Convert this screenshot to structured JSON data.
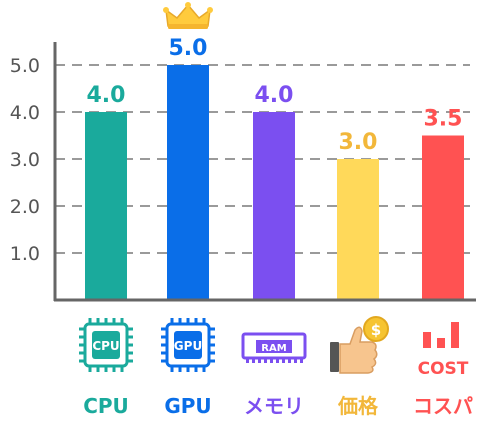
{
  "chart_data": {
    "type": "bar",
    "categories": [
      "CPU",
      "GPU",
      "メモリ",
      "価格",
      "コスパ"
    ],
    "values": [
      4.0,
      5.0,
      4.0,
      3.0,
      3.5
    ],
    "value_labels": [
      "4.0",
      "5.0",
      "4.0",
      "3.0",
      "3.5"
    ],
    "colors": [
      "#1aaa9c",
      "#0a6ee8",
      "#7b4ff0",
      "#ffd95a",
      "#ff5252"
    ],
    "label_colors": [
      "#1aaa9c",
      "#0a6ee8",
      "#7b4ff0",
      "#f2b73a",
      "#ff5252"
    ],
    "icons": [
      "cpu-icon",
      "gpu-icon",
      "ram-icon",
      "price-thumbs-up-coin-icon",
      "cost-performance-icon"
    ],
    "icon_texts": [
      "CPU",
      "GPU",
      "RAM",
      "$",
      "COST"
    ],
    "ytick_labels": [
      "1.0",
      "2.0",
      "3.0",
      "4.0",
      "5.0"
    ],
    "ylim": [
      0,
      5.0
    ],
    "grid": true,
    "highlight": "GPU"
  }
}
